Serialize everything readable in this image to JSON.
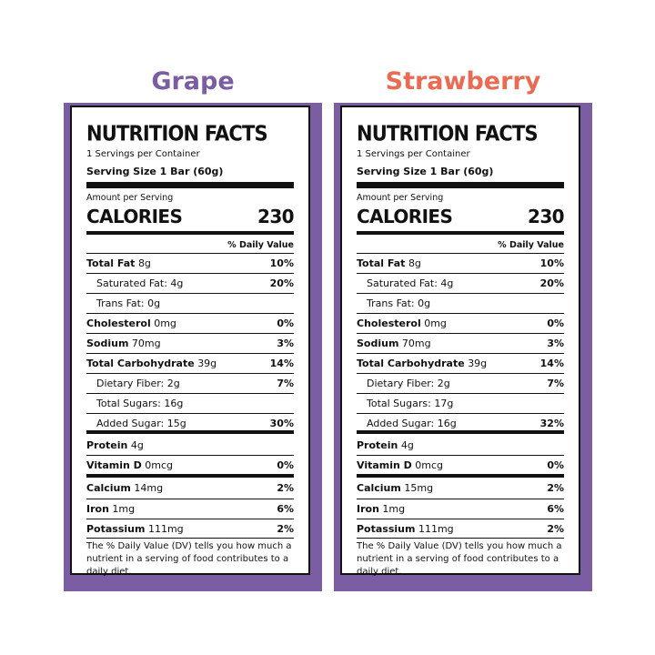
{
  "labels": [
    {
      "flavor": "Grape",
      "flavor_color": "#7b5da3",
      "title": "NUTRITION FACTS",
      "servings": "1 Servings per Container",
      "serving_size": "Serving Size 1 Bar (60g)",
      "amount_per_serving": "Amount per Serving",
      "calories_label": "CALORIES",
      "calories": "230",
      "dv_header": "% Daily Value",
      "rows": [
        {
          "name": "Total Fat",
          "amount": "8g",
          "pct": "10%"
        },
        {
          "name": "Saturated Fat: 4g",
          "amount": "",
          "pct": "20%"
        },
        {
          "name": "Trans Fat: 0g",
          "amount": "",
          "pct": ""
        },
        {
          "name": "Cholesterol",
          "amount": "0mg",
          "pct": "0%"
        },
        {
          "name": "Sodium",
          "amount": "70mg",
          "pct": "3%"
        },
        {
          "name": "Total Carbohydrate",
          "amount": "39g",
          "pct": "14%"
        },
        {
          "name": "Dietary Fiber: 2g",
          "amount": "",
          "pct": "7%"
        },
        {
          "name": "Total Sugars: 16g",
          "amount": "",
          "pct": ""
        },
        {
          "name": "Added Sugar: 15g",
          "amount": "",
          "pct": "30%"
        },
        {
          "name": "Protein",
          "amount": "4g",
          "pct": ""
        },
        {
          "name": "Vitamin D",
          "amount": "0mcg",
          "pct": "0%"
        },
        {
          "name": "Calcium",
          "amount": "14mg",
          "pct": "2%"
        },
        {
          "name": "Iron",
          "amount": "1mg",
          "pct": "6%"
        },
        {
          "name": "Potassium",
          "amount": "111mg",
          "pct": "2%"
        }
      ],
      "footnote": "The % Daily Value (DV) tells you how much a nutrient in a serving of food contributes to a daily diet."
    },
    {
      "flavor": "Strawberry",
      "flavor_color": "#ea6b54",
      "title": "NUTRITION FACTS",
      "servings": "1 Servings per Container",
      "serving_size": "Serving Size 1 Bar (60g)",
      "amount_per_serving": "Amount per Serving",
      "calories_label": "CALORIES",
      "calories": "230",
      "dv_header": "% Daily Value",
      "rows": [
        {
          "name": "Total Fat",
          "amount": "8g",
          "pct": "10%"
        },
        {
          "name": "Saturated Fat: 4g",
          "amount": "",
          "pct": "20%"
        },
        {
          "name": "Trans Fat: 0g",
          "amount": "",
          "pct": ""
        },
        {
          "name": "Cholesterol",
          "amount": "0mg",
          "pct": "0%"
        },
        {
          "name": "Sodium",
          "amount": "70mg",
          "pct": "3%"
        },
        {
          "name": "Total Carbohydrate",
          "amount": "39g",
          "pct": "14%"
        },
        {
          "name": "Dietary Fiber: 2g",
          "amount": "",
          "pct": "7%"
        },
        {
          "name": "Total Sugars: 17g",
          "amount": "",
          "pct": ""
        },
        {
          "name": "Added Sugar: 16g",
          "amount": "",
          "pct": "32%"
        },
        {
          "name": "Protein",
          "amount": "4g",
          "pct": ""
        },
        {
          "name": "Vitamin D",
          "amount": "0mcg",
          "pct": "0%"
        },
        {
          "name": "Calcium",
          "amount": "15mg",
          "pct": "2%"
        },
        {
          "name": "Iron",
          "amount": "1mg",
          "pct": "6%"
        },
        {
          "name": "Potassium",
          "amount": "111mg",
          "pct": "2%"
        }
      ],
      "footnote": "The % Daily Value (DV) tells you how much a nutrient in a serving of food contributes to a daily diet."
    }
  ]
}
